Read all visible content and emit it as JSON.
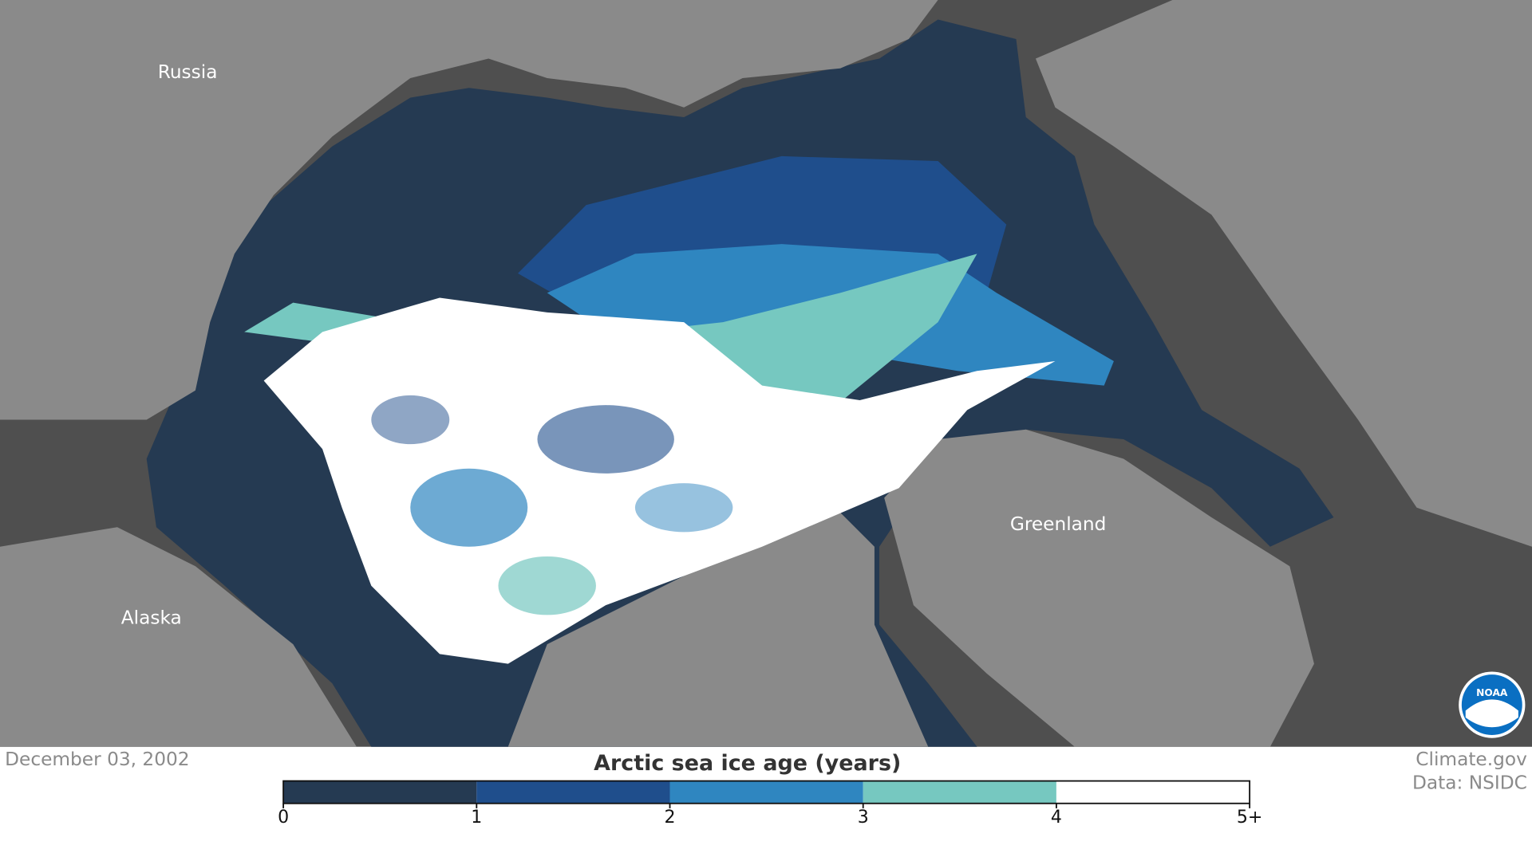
{
  "map_labels": {
    "russia": "Russia",
    "alaska": "Alaska",
    "greenland": "Greenland"
  },
  "date": "December 03, 2002",
  "legend": {
    "title": "Arctic sea ice age (years)",
    "ticks": [
      0,
      1,
      2,
      3,
      4,
      {
        "value": 5,
        "label": "5+"
      }
    ],
    "colors": [
      "#253a52",
      "#1f4e8c",
      "#2f86c0",
      "#76c8c0",
      "#ffffff"
    ]
  },
  "credits": [
    "Climate.gov",
    "Data: NSIDC"
  ],
  "logo": "NOAA"
}
